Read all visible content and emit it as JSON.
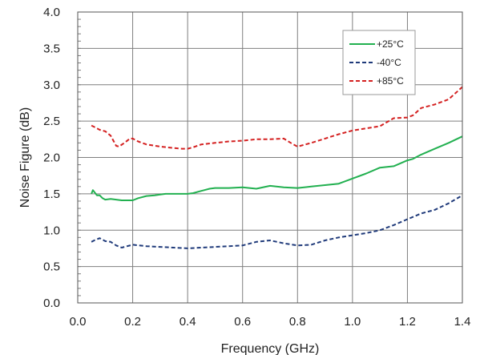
{
  "chart_data": {
    "type": "line",
    "title": "",
    "xlabel": "Frequency (GHz)",
    "ylabel": "Noise Figure (dB)",
    "xlim": [
      0.0,
      1.4
    ],
    "ylim": [
      0.0,
      4.0
    ],
    "xticks": [
      0.0,
      0.2,
      0.4,
      0.6,
      0.8,
      1.0,
      1.2,
      1.4
    ],
    "xtick_labels": [
      "0.0",
      "0.2",
      "0.4",
      "0.6",
      "0.8",
      "1.0",
      "1.2",
      "1.4"
    ],
    "yticks": [
      0.0,
      0.5,
      1.0,
      1.5,
      2.0,
      2.5,
      3.0,
      3.5,
      4.0
    ],
    "ytick_labels": [
      "0.0",
      "0.5",
      "1.0",
      "1.5",
      "2.0",
      "2.5",
      "3.0",
      "3.5",
      "4.0"
    ],
    "grid": true,
    "minor_grid_x": true,
    "legend_position": "top-right",
    "series": [
      {
        "name": "+25°C",
        "color": "#22b050",
        "style": "solid",
        "x": [
          0.05,
          0.055,
          0.07,
          0.08,
          0.09,
          0.1,
          0.12,
          0.14,
          0.16,
          0.18,
          0.2,
          0.22,
          0.25,
          0.28,
          0.3,
          0.32,
          0.35,
          0.38,
          0.4,
          0.42,
          0.45,
          0.48,
          0.5,
          0.55,
          0.6,
          0.65,
          0.7,
          0.75,
          0.8,
          0.85,
          0.9,
          0.95,
          1.0,
          1.05,
          1.1,
          1.15,
          1.2,
          1.22,
          1.25,
          1.3,
          1.35,
          1.4
        ],
        "y": [
          1.5,
          1.55,
          1.48,
          1.48,
          1.44,
          1.42,
          1.43,
          1.42,
          1.41,
          1.41,
          1.41,
          1.44,
          1.47,
          1.48,
          1.49,
          1.5,
          1.5,
          1.5,
          1.5,
          1.51,
          1.54,
          1.57,
          1.58,
          1.58,
          1.59,
          1.57,
          1.61,
          1.59,
          1.58,
          1.6,
          1.62,
          1.64,
          1.71,
          1.78,
          1.86,
          1.88,
          1.96,
          1.98,
          2.04,
          2.12,
          2.2,
          2.29
        ]
      },
      {
        "name": "-40°C",
        "color": "#1f3a7a",
        "style": "dashed",
        "x": [
          0.05,
          0.06,
          0.08,
          0.1,
          0.12,
          0.14,
          0.16,
          0.18,
          0.2,
          0.25,
          0.3,
          0.35,
          0.4,
          0.45,
          0.5,
          0.55,
          0.6,
          0.65,
          0.7,
          0.75,
          0.8,
          0.85,
          0.9,
          0.95,
          1.0,
          1.05,
          1.1,
          1.15,
          1.2,
          1.25,
          1.3,
          1.35,
          1.4
        ],
        "y": [
          0.84,
          0.86,
          0.89,
          0.85,
          0.84,
          0.79,
          0.76,
          0.78,
          0.8,
          0.78,
          0.77,
          0.76,
          0.75,
          0.76,
          0.77,
          0.78,
          0.79,
          0.84,
          0.86,
          0.82,
          0.79,
          0.8,
          0.86,
          0.9,
          0.93,
          0.96,
          1.0,
          1.07,
          1.15,
          1.23,
          1.28,
          1.37,
          1.48
        ]
      },
      {
        "name": "+85°C",
        "color": "#d42020",
        "style": "dashed",
        "x": [
          0.05,
          0.06,
          0.08,
          0.1,
          0.12,
          0.14,
          0.15,
          0.17,
          0.19,
          0.2,
          0.22,
          0.25,
          0.3,
          0.35,
          0.38,
          0.4,
          0.42,
          0.45,
          0.5,
          0.55,
          0.6,
          0.65,
          0.7,
          0.75,
          0.78,
          0.8,
          0.85,
          0.9,
          0.95,
          1.0,
          1.05,
          1.1,
          1.15,
          1.2,
          1.22,
          1.25,
          1.3,
          1.35,
          1.4
        ],
        "y": [
          2.44,
          2.42,
          2.38,
          2.36,
          2.3,
          2.16,
          2.15,
          2.2,
          2.26,
          2.26,
          2.22,
          2.18,
          2.15,
          2.13,
          2.12,
          2.12,
          2.14,
          2.18,
          2.2,
          2.22,
          2.23,
          2.25,
          2.25,
          2.26,
          2.19,
          2.15,
          2.2,
          2.26,
          2.32,
          2.37,
          2.4,
          2.43,
          2.54,
          2.55,
          2.58,
          2.68,
          2.73,
          2.8,
          2.97
        ]
      }
    ]
  }
}
